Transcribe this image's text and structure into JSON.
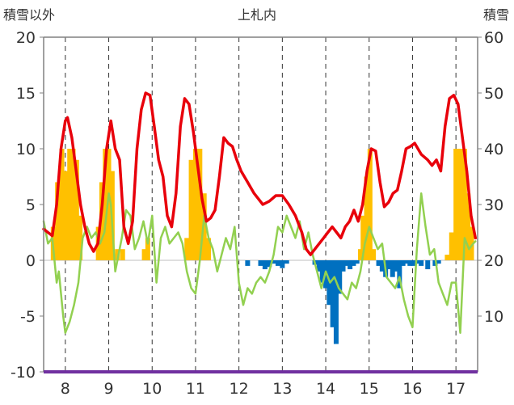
{
  "chart_data": {
    "type": "combo-bar-line",
    "title": "上札内",
    "left_axis_label": "積雪以外",
    "right_axis_label": "積雪",
    "ylim_left": [
      -10,
      20
    ],
    "ylim_right": [
      0,
      60
    ],
    "yticks_left": [
      "20",
      "15",
      "10",
      "5",
      "0",
      "-5",
      "-10"
    ],
    "yticks_right": [
      "60",
      "50",
      "40",
      "30",
      "20",
      "10"
    ],
    "x_range": [
      7.5,
      17.5
    ],
    "x_labels": [
      "8",
      "9",
      "10",
      "11",
      "12",
      "13",
      "14",
      "15",
      "16",
      "17"
    ],
    "grid": "vertical dashed lines at each x label",
    "colors": {
      "red_line": "#e8000b",
      "green_line": "#92d050",
      "positive_bars": "#ffc000",
      "negative_bars": "#0070c0",
      "baseline": "#7030a0",
      "axis": "#808080"
    },
    "series": [
      {
        "name": "red line (left axis)",
        "color": "#e8000b",
        "x": [
          7.5,
          7.7,
          7.8,
          7.9,
          8.0,
          8.05,
          8.15,
          8.25,
          8.35,
          8.45,
          8.55,
          8.65,
          8.75,
          8.85,
          8.95,
          9.05,
          9.15,
          9.25,
          9.35,
          9.45,
          9.55,
          9.65,
          9.75,
          9.85,
          9.95,
          10.05,
          10.15,
          10.25,
          10.35,
          10.45,
          10.55,
          10.65,
          10.75,
          10.85,
          10.95,
          11.05,
          11.15,
          11.25,
          11.35,
          11.45,
          11.55,
          11.65,
          11.75,
          11.85,
          11.95,
          12.05,
          12.2,
          12.35,
          12.45,
          12.55,
          12.7,
          12.85,
          13.0,
          13.15,
          13.3,
          13.45,
          13.55,
          13.65,
          13.75,
          13.85,
          13.95,
          14.05,
          14.15,
          14.25,
          14.35,
          14.45,
          14.55,
          14.65,
          14.75,
          14.85,
          14.95,
          15.05,
          15.15,
          15.25,
          15.35,
          15.45,
          15.55,
          15.65,
          15.75,
          15.85,
          15.95,
          16.05,
          16.2,
          16.35,
          16.45,
          16.55,
          16.65,
          16.75,
          16.85,
          16.95,
          17.05,
          17.15,
          17.25,
          17.35,
          17.45
        ],
        "values": [
          2.8,
          2.2,
          5.0,
          10.0,
          12.5,
          12.8,
          11.0,
          8.0,
          5.0,
          3.0,
          1.5,
          0.8,
          1.5,
          5.0,
          10.0,
          12.5,
          10.0,
          9.0,
          3.0,
          1.5,
          3.5,
          10.0,
          13.5,
          15.0,
          14.8,
          12.0,
          9.0,
          7.5,
          4.0,
          3.0,
          6.0,
          12.0,
          14.5,
          14.0,
          11.5,
          8.5,
          5.5,
          3.5,
          3.8,
          4.5,
          7.5,
          11.0,
          10.5,
          10.2,
          9.0,
          8.0,
          7.0,
          6.0,
          5.5,
          5.0,
          5.3,
          5.8,
          5.8,
          5.0,
          4.0,
          2.5,
          1.0,
          0.5,
          1.0,
          1.5,
          2.0,
          2.5,
          3.0,
          2.5,
          2.0,
          3.0,
          3.5,
          4.5,
          3.5,
          5.0,
          8.0,
          10.0,
          9.8,
          7.0,
          4.8,
          5.2,
          6.0,
          6.3,
          8.0,
          10.0,
          10.2,
          10.5,
          9.5,
          9.0,
          8.5,
          9.0,
          8.0,
          12.0,
          14.5,
          14.8,
          14.0,
          11.0,
          8.0,
          4.0,
          2.0
        ]
      },
      {
        "name": "green line (left axis)",
        "color": "#92d050",
        "x": [
          7.5,
          7.6,
          7.7,
          7.8,
          7.85,
          7.9,
          7.95,
          8.0,
          8.05,
          8.1,
          8.2,
          8.3,
          8.4,
          8.5,
          8.6,
          8.7,
          8.8,
          8.9,
          9.0,
          9.05,
          9.1,
          9.15,
          9.2,
          9.3,
          9.4,
          9.5,
          9.6,
          9.7,
          9.8,
          9.9,
          10.0,
          10.1,
          10.2,
          10.3,
          10.4,
          10.5,
          10.6,
          10.7,
          10.8,
          10.9,
          11.0,
          11.1,
          11.2,
          11.3,
          11.4,
          11.5,
          11.6,
          11.7,
          11.8,
          11.9,
          12.0,
          12.1,
          12.2,
          12.3,
          12.4,
          12.5,
          12.6,
          12.7,
          12.8,
          12.9,
          13.0,
          13.1,
          13.2,
          13.3,
          13.4,
          13.5,
          13.6,
          13.7,
          13.8,
          13.9,
          14.0,
          14.1,
          14.2,
          14.3,
          14.4,
          14.5,
          14.6,
          14.7,
          14.8,
          14.9,
          15.0,
          15.1,
          15.2,
          15.3,
          15.4,
          15.5,
          15.6,
          15.7,
          15.8,
          15.9,
          16.0,
          16.1,
          16.2,
          16.3,
          16.4,
          16.5,
          16.6,
          16.7,
          16.8,
          16.9,
          17.0,
          17.1,
          17.2,
          17.3,
          17.4,
          17.45
        ],
        "values": [
          3.5,
          1.5,
          2.0,
          -2.0,
          -1.0,
          -3.0,
          -5.0,
          -6.5,
          -6.0,
          -5.5,
          -4.0,
          -2.0,
          2.0,
          3.0,
          2.0,
          2.5,
          1.5,
          2.5,
          6.0,
          5.0,
          2.0,
          -1.0,
          0.0,
          2.0,
          4.5,
          4.0,
          1.0,
          2.0,
          3.5,
          1.5,
          4.0,
          -2.0,
          2.0,
          3.0,
          1.5,
          2.0,
          2.5,
          1.5,
          -1.0,
          -2.5,
          -3.0,
          0.0,
          4.0,
          2.0,
          1.0,
          -1.0,
          0.5,
          2.0,
          1.0,
          3.0,
          -2.0,
          -4.0,
          -2.5,
          -3.0,
          -2.0,
          -1.5,
          -2.0,
          -1.0,
          0.5,
          3.0,
          2.5,
          4.0,
          3.0,
          2.0,
          3.5,
          1.0,
          2.5,
          0.5,
          -1.0,
          -2.5,
          -1.0,
          -2.0,
          -1.5,
          -2.5,
          -3.0,
          -3.5,
          -2.0,
          -2.5,
          -1.0,
          1.5,
          3.0,
          2.0,
          1.0,
          1.5,
          -1.5,
          -2.0,
          -2.5,
          -1.5,
          -3.5,
          -5.0,
          -6.0,
          1.0,
          6.0,
          3.0,
          0.5,
          1.0,
          -2.0,
          -3.0,
          -4.0,
          -2.0,
          -2.0,
          -6.5,
          2.0,
          1.0,
          1.5,
          1.7
        ]
      }
    ],
    "bars": {
      "name": "bars (left axis)",
      "x": [
        7.72,
        7.82,
        7.92,
        8.02,
        8.1,
        8.18,
        8.26,
        8.34,
        8.76,
        8.84,
        8.92,
        9.0,
        9.08,
        9.2,
        9.32,
        9.82,
        9.9,
        10.8,
        10.9,
        11.0,
        11.1,
        11.2,
        11.3,
        12.2,
        12.5,
        12.6,
        12.7,
        12.8,
        12.9,
        13.0,
        13.1,
        13.75,
        13.85,
        13.92,
        14.0,
        14.08,
        14.16,
        14.24,
        14.32,
        14.4,
        14.48,
        14.56,
        14.64,
        14.72,
        14.8,
        14.86,
        14.94,
        15.02,
        15.1,
        15.22,
        15.3,
        15.38,
        15.46,
        15.54,
        15.62,
        15.7,
        15.78,
        15.86,
        15.94,
        16.02,
        16.1,
        16.2,
        16.35,
        16.52,
        16.6,
        16.8,
        16.9,
        17.0,
        17.1,
        17.2,
        17.28,
        17.36
      ],
      "values": [
        3.0,
        7.0,
        10.0,
        8.0,
        10.0,
        10.0,
        9.0,
        4.0,
        3.0,
        7.0,
        10.0,
        10.0,
        8.0,
        1.0,
        1.0,
        1.0,
        2.0,
        2.0,
        9.0,
        10.0,
        10.0,
        6.0,
        2.0,
        -0.5,
        -0.5,
        -0.8,
        -0.6,
        -0.3,
        -0.5,
        -0.7,
        -0.3,
        -0.4,
        -1.0,
        -2.0,
        -2.5,
        -4.0,
        -6.0,
        -7.5,
        -3.0,
        -1.0,
        -0.5,
        -0.8,
        -0.5,
        -0.3,
        1.0,
        4.0,
        7.5,
        10.0,
        1.0,
        -0.5,
        -1.0,
        -1.5,
        -0.8,
        -1.5,
        -1.0,
        -2.5,
        -0.5,
        -0.3,
        -0.5,
        -0.5,
        -0.3,
        -0.5,
        -0.8,
        -0.5,
        -0.3,
        0.5,
        2.5,
        10.0,
        10.0,
        10.0,
        6.0,
        3.0
      ]
    }
  }
}
